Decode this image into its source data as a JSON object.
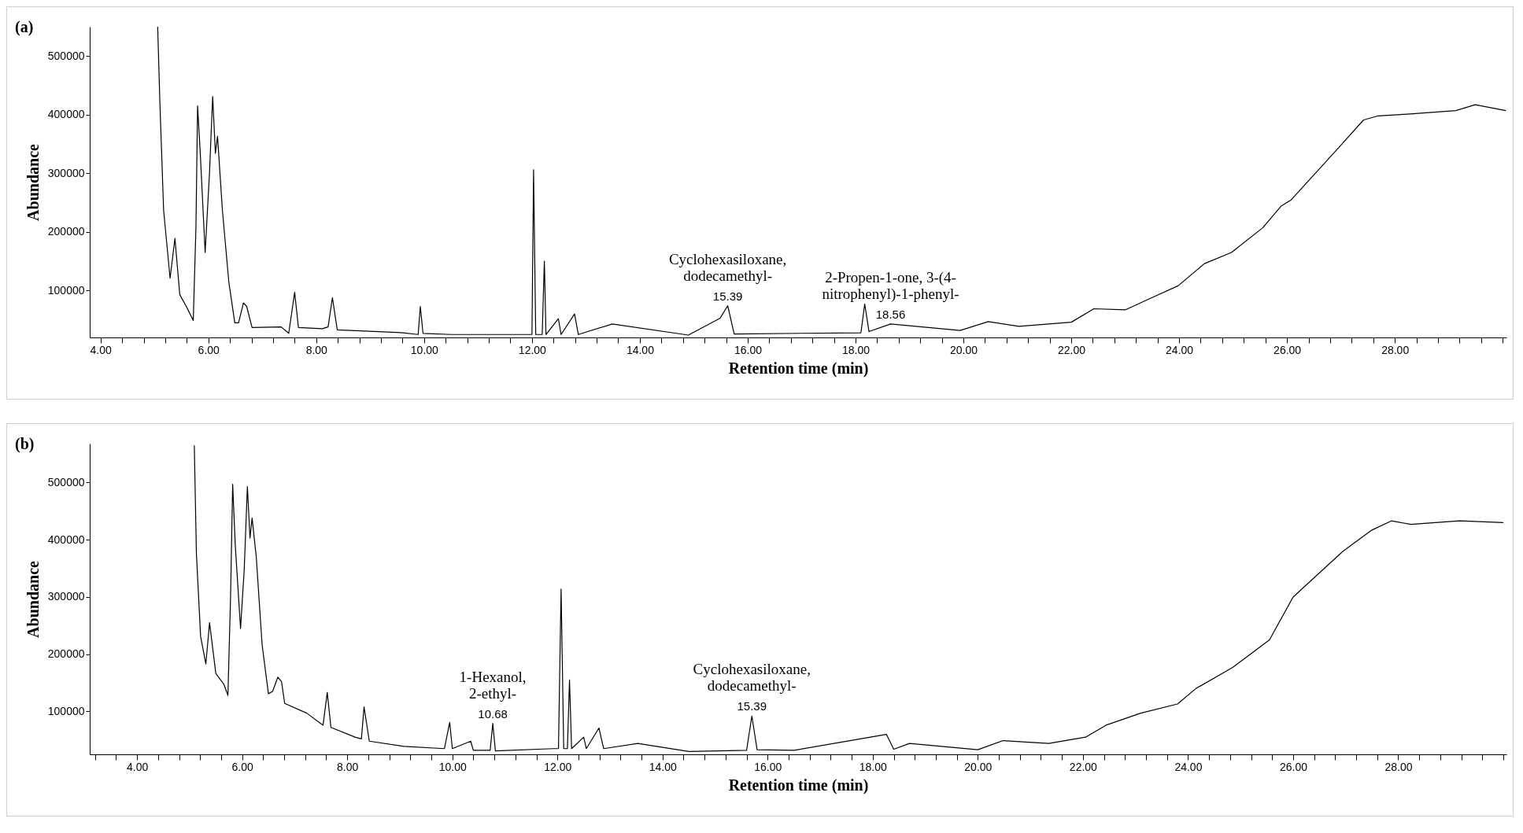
{
  "chart_data": [
    {
      "type": "line",
      "title": "(a)",
      "xlabel": "Retention time (min)",
      "ylabel": "Abundance",
      "xlim": [
        3.8,
        30.07
      ],
      "ylim": [
        20000,
        550000
      ],
      "xticks": [
        {
          "value": 4,
          "label": "4.00"
        },
        {
          "value": 4.4,
          "label": null
        },
        {
          "value": 4.8,
          "label": null
        },
        {
          "value": 5.2,
          "label": null
        },
        {
          "value": 5.6,
          "label": null
        },
        {
          "value": 6,
          "label": "6.00"
        },
        {
          "value": 6.4,
          "label": null
        },
        {
          "value": 6.8,
          "label": null
        },
        {
          "value": 7.2,
          "label": null
        },
        {
          "value": 7.6,
          "label": null
        },
        {
          "value": 8,
          "label": "8.00"
        },
        {
          "value": 8.4,
          "label": null
        },
        {
          "value": 8.8,
          "label": null
        },
        {
          "value": 9.2,
          "label": null
        },
        {
          "value": 9.6,
          "label": null
        },
        {
          "value": 10,
          "label": "10.00"
        },
        {
          "value": 10.4,
          "label": null
        },
        {
          "value": 10.8,
          "label": null
        },
        {
          "value": 11.2,
          "label": null
        },
        {
          "value": 11.6,
          "label": null
        },
        {
          "value": 12,
          "label": "12.00"
        },
        {
          "value": 12.4,
          "label": null
        },
        {
          "value": 12.8,
          "label": null
        },
        {
          "value": 13.2,
          "label": null
        },
        {
          "value": 13.6,
          "label": null
        },
        {
          "value": 14,
          "label": "14.00"
        },
        {
          "value": 14.4,
          "label": null
        },
        {
          "value": 14.8,
          "label": null
        },
        {
          "value": 15.2,
          "label": null
        },
        {
          "value": 15.6,
          "label": null
        },
        {
          "value": 16,
          "label": "16.00"
        },
        {
          "value": 16.4,
          "label": null
        },
        {
          "value": 16.8,
          "label": null
        },
        {
          "value": 17.2,
          "label": null
        },
        {
          "value": 17.6,
          "label": null
        },
        {
          "value": 18,
          "label": "18.00"
        },
        {
          "value": 18.4,
          "label": null
        },
        {
          "value": 18.8,
          "label": null
        },
        {
          "value": 19.2,
          "label": null
        },
        {
          "value": 19.6,
          "label": null
        },
        {
          "value": 20,
          "label": "20.00"
        },
        {
          "value": 20.4,
          "label": null
        },
        {
          "value": 20.8,
          "label": null
        },
        {
          "value": 21.2,
          "label": null
        },
        {
          "value": 21.6,
          "label": null
        },
        {
          "value": 22,
          "label": "22.00"
        },
        {
          "value": 22.4,
          "label": null
        },
        {
          "value": 22.8,
          "label": null
        },
        {
          "value": 23.2,
          "label": null
        },
        {
          "value": 23.6,
          "label": null
        },
        {
          "value": 24,
          "label": "24.00"
        },
        {
          "value": 24.4,
          "label": null
        },
        {
          "value": 24.8,
          "label": null
        },
        {
          "value": 25.2,
          "label": null
        },
        {
          "value": 25.6,
          "label": null
        },
        {
          "value": 26,
          "label": "26.00"
        },
        {
          "value": 26.4,
          "label": null
        },
        {
          "value": 26.8,
          "label": null
        },
        {
          "value": 27.2,
          "label": null
        },
        {
          "value": 27.6,
          "label": null
        },
        {
          "value": 28,
          "label": "28.00"
        },
        {
          "value": 28.4,
          "label": null
        },
        {
          "value": 28.8,
          "label": null
        },
        {
          "value": 29.2,
          "label": null
        },
        {
          "value": 29.6,
          "label": null
        },
        {
          "value": 30,
          "label": null
        }
      ],
      "yticks": [
        100000,
        200000,
        300000,
        400000,
        500000
      ],
      "x": [
        5.06,
        5.1,
        5.17,
        5.29,
        5.38,
        5.47,
        5.59,
        5.72,
        5.77,
        5.8,
        5.85,
        5.94,
        6.02,
        6.08,
        6.13,
        6.17,
        6.26,
        6.38,
        6.49,
        6.56,
        6.65,
        6.71,
        6.81,
        7.35,
        7.49,
        7.6,
        7.67,
        8.11,
        8.22,
        8.3,
        8.39,
        9.61,
        9.89,
        9.93,
        9.98,
        10.51,
        11.86,
        12.0,
        12.03,
        12.07,
        12.19,
        12.23,
        12.26,
        12.49,
        12.54,
        12.79,
        12.86,
        13.49,
        14.9,
        15.49,
        15.63,
        15.75,
        18.1,
        18.17,
        18.25,
        18.65,
        19.94,
        20.46,
        21.03,
        22.0,
        22.42,
        23.0,
        23.5,
        23.98,
        24.47,
        24.97,
        25.55,
        25.89,
        26.07,
        26.97,
        27.42,
        27.69,
        28.23,
        29.13,
        29.49,
        30.06
      ],
      "series": [
        {
          "color": "#000000",
          "values": [
            550000,
            423000,
            237000,
            121000,
            189000,
            93000,
            73000,
            49000,
            210000,
            415000,
            334000,
            165000,
            299000,
            431000,
            334000,
            363000,
            237000,
            114000,
            45000,
            45000,
            79000,
            73000,
            37000,
            38000,
            27000,
            97000,
            37000,
            35000,
            38000,
            88000,
            33000,
            28000,
            25000,
            73000,
            27000,
            25000,
            25000,
            25000,
            306000,
            25000,
            25000,
            150000,
            25000,
            52000,
            25000,
            60000,
            25000,
            43000,
            24000,
            53000,
            74000,
            26000,
            28000,
            77000,
            30000,
            43000,
            32000,
            47000,
            39000,
            46000,
            69000,
            67000,
            88000,
            108000,
            146000,
            165000,
            207000,
            244000,
            254000,
            345000,
            391000,
            398000,
            401000,
            407000,
            417000,
            407000
          ]
        }
      ],
      "annotations": [
        {
          "text": "15.39",
          "x": 15.63,
          "y": 74000
        },
        {
          "text": "Cyclohexasiloxane,\ndodecamethyl-",
          "x": 15.63,
          "y": 74000
        },
        {
          "text": "18.56",
          "x": 18.65,
          "y": 43000
        },
        {
          "text": "2-Propen-1-one, 3-(4-\nnitrophenyl)-1-phenyl-",
          "x": 18.65,
          "y": 43000
        }
      ]
    },
    {
      "type": "line",
      "title": "(b)",
      "xlabel": "Retention time (min)",
      "ylabel": "Abundance",
      "xlim": [
        3.1,
        30.06
      ],
      "ylim": [
        25000,
        568000
      ],
      "xticks": [
        {
          "value": 3.2,
          "label": null
        },
        {
          "value": 3.6,
          "label": null
        },
        {
          "value": 4,
          "label": "4.00"
        },
        {
          "value": 4.4,
          "label": null
        },
        {
          "value": 4.8,
          "label": null
        },
        {
          "value": 5.2,
          "label": null
        },
        {
          "value": 5.6,
          "label": null
        },
        {
          "value": 6,
          "label": "6.00"
        },
        {
          "value": 6.4,
          "label": null
        },
        {
          "value": 6.8,
          "label": null
        },
        {
          "value": 7.2,
          "label": null
        },
        {
          "value": 7.6,
          "label": null
        },
        {
          "value": 8,
          "label": "8.00"
        },
        {
          "value": 8.4,
          "label": null
        },
        {
          "value": 8.8,
          "label": null
        },
        {
          "value": 9.2,
          "label": null
        },
        {
          "value": 9.6,
          "label": null
        },
        {
          "value": 10,
          "label": "10.00"
        },
        {
          "value": 10.4,
          "label": null
        },
        {
          "value": 10.8,
          "label": null
        },
        {
          "value": 11.2,
          "label": null
        },
        {
          "value": 11.6,
          "label": null
        },
        {
          "value": 12,
          "label": "12.00"
        },
        {
          "value": 12.4,
          "label": null
        },
        {
          "value": 12.8,
          "label": null
        },
        {
          "value": 13.2,
          "label": null
        },
        {
          "value": 13.6,
          "label": null
        },
        {
          "value": 14,
          "label": "14.00"
        },
        {
          "value": 14.4,
          "label": null
        },
        {
          "value": 14.8,
          "label": null
        },
        {
          "value": 15.2,
          "label": null
        },
        {
          "value": 15.6,
          "label": null
        },
        {
          "value": 16,
          "label": "16.00"
        },
        {
          "value": 16.4,
          "label": null
        },
        {
          "value": 16.8,
          "label": null
        },
        {
          "value": 17.2,
          "label": null
        },
        {
          "value": 17.6,
          "label": null
        },
        {
          "value": 18,
          "label": "18.00"
        },
        {
          "value": 18.4,
          "label": null
        },
        {
          "value": 18.8,
          "label": null
        },
        {
          "value": 19.2,
          "label": null
        },
        {
          "value": 19.6,
          "label": null
        },
        {
          "value": 20,
          "label": "20.00"
        },
        {
          "value": 20.4,
          "label": null
        },
        {
          "value": 20.8,
          "label": null
        },
        {
          "value": 21.2,
          "label": null
        },
        {
          "value": 21.6,
          "label": null
        },
        {
          "value": 22,
          "label": "22.00"
        },
        {
          "value": 22.4,
          "label": null
        },
        {
          "value": 22.8,
          "label": null
        },
        {
          "value": 23.2,
          "label": null
        },
        {
          "value": 23.6,
          "label": null
        },
        {
          "value": 24,
          "label": "24.00"
        },
        {
          "value": 24.4,
          "label": null
        },
        {
          "value": 24.8,
          "label": null
        },
        {
          "value": 25.2,
          "label": null
        },
        {
          "value": 25.6,
          "label": null
        },
        {
          "value": 26,
          "label": "26.00"
        },
        {
          "value": 26.4,
          "label": null
        },
        {
          "value": 26.8,
          "label": null
        },
        {
          "value": 27.2,
          "label": null
        },
        {
          "value": 27.6,
          "label": null
        },
        {
          "value": 28,
          "label": "28.00"
        },
        {
          "value": 28.4,
          "label": null
        },
        {
          "value": 28.8,
          "label": null
        },
        {
          "value": 29.2,
          "label": null
        },
        {
          "value": 29.6,
          "label": null
        },
        {
          "value": 30,
          "label": null
        }
      ],
      "yticks": [
        100000,
        200000,
        300000,
        400000,
        500000
      ],
      "x": [
        5.09,
        5.13,
        5.21,
        5.31,
        5.38,
        5.5,
        5.65,
        5.73,
        5.78,
        5.82,
        5.87,
        5.97,
        6.04,
        6.1,
        6.15,
        6.19,
        6.27,
        6.38,
        6.5,
        6.58,
        6.68,
        6.75,
        6.81,
        7.23,
        7.54,
        7.62,
        7.69,
        8.15,
        8.27,
        8.32,
        8.42,
        9.08,
        9.85,
        9.95,
        10.0,
        10.35,
        10.4,
        10.72,
        10.77,
        10.82,
        11.92,
        12.02,
        12.07,
        12.12,
        12.19,
        12.23,
        12.27,
        12.5,
        12.55,
        12.79,
        12.88,
        13.53,
        14.5,
        15.6,
        15.7,
        15.8,
        16.5,
        18.26,
        18.4,
        18.7,
        20.0,
        20.48,
        21.35,
        22.05,
        22.44,
        23.1,
        23.8,
        24.15,
        24.85,
        25.55,
        26.0,
        26.95,
        27.5,
        27.87,
        28.24,
        29.17,
        30.0
      ],
      "series": [
        {
          "color": "#000000",
          "values": [
            565000,
            376000,
            231000,
            183000,
            255000,
            166000,
            148000,
            128000,
            300000,
            497000,
            390000,
            245000,
            348000,
            493000,
            403000,
            438000,
            369000,
            217000,
            131000,
            135000,
            160000,
            152000,
            114000,
            97000,
            76000,
            133000,
            72000,
            55000,
            52000,
            108000,
            48000,
            39000,
            35000,
            81000,
            35000,
            48000,
            32000,
            32000,
            79000,
            31000,
            35000,
            35000,
            314000,
            35000,
            35000,
            155000,
            35000,
            55000,
            35000,
            71000,
            35000,
            44000,
            30000,
            32000,
            92000,
            33000,
            32000,
            60000,
            34000,
            44000,
            33000,
            49000,
            44000,
            55000,
            76000,
            97000,
            113000,
            140000,
            177000,
            225000,
            300000,
            380000,
            417000,
            433000,
            427000,
            433000,
            430000
          ]
        }
      ],
      "annotations": [
        {
          "text": "10.68",
          "x": 10.77,
          "y": 79000
        },
        {
          "text": "1-Hexanol,\n2-ethyl-",
          "x": 10.77,
          "y": 79000
        },
        {
          "text": "15.39",
          "x": 15.7,
          "y": 92000
        },
        {
          "text": "Cyclohexasiloxane,\ndodecamethyl-",
          "x": 15.7,
          "y": 92000
        }
      ]
    }
  ]
}
